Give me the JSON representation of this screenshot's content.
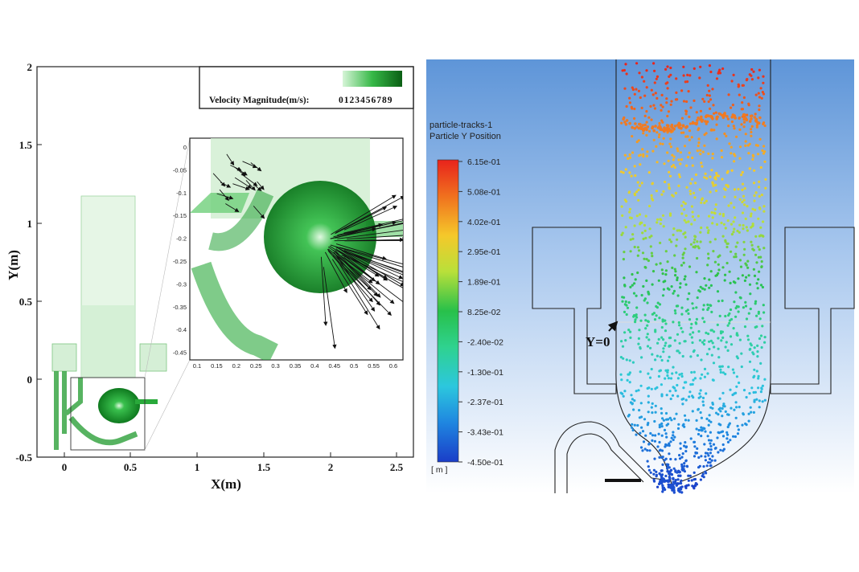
{
  "left_panel": {
    "x_axis": {
      "title": "X(m)",
      "ticks": [
        "0",
        "0.5",
        "1",
        "1.5",
        "2",
        "2.5"
      ]
    },
    "y_axis": {
      "title": "Y(m)",
      "ticks": [
        "-0.5",
        "0",
        "0.5",
        "1",
        "1.5",
        "2"
      ]
    },
    "legend": {
      "label": "Velocity Magnitude(m/s):",
      "scale_digits": "0123456789"
    },
    "inset": {
      "x_ticks": [
        "0.1",
        "0.15",
        "0.2",
        "0.25",
        "0.3",
        "0.35",
        "0.4",
        "0.45",
        "0.5",
        "0.55",
        "0.6"
      ],
      "y_ticks": [
        "0",
        "-0.05",
        "-0.1",
        "-0.15",
        "-0.2",
        "-0.25",
        "-0.3",
        "-0.35",
        "-0.4",
        "-0.45"
      ]
    },
    "colors": {
      "flow_dark": "#0f7a1f",
      "flow_light": "#bfe8c0",
      "legend_dark": "#0b6b16",
      "legend_light": "#cdf3cf"
    }
  },
  "right_panel": {
    "colorbar_title_1": "particle-tracks-1",
    "colorbar_title_2": "Particle Y Position",
    "colorbar_values": [
      "6.15e-01",
      "5.08e-01",
      "4.02e-01",
      "2.95e-01",
      "1.89e-01",
      "8.25e-02",
      "-2.40e-02",
      "-1.30e-01",
      "-2.37e-01",
      "-3.43e-01",
      "-4.50e-01"
    ],
    "colorbar_unit": "[ m ]",
    "y_zero_label": "Y=0",
    "colors": {
      "background_top": "#5f96d8",
      "background_bottom": "#ffffff"
    }
  }
}
